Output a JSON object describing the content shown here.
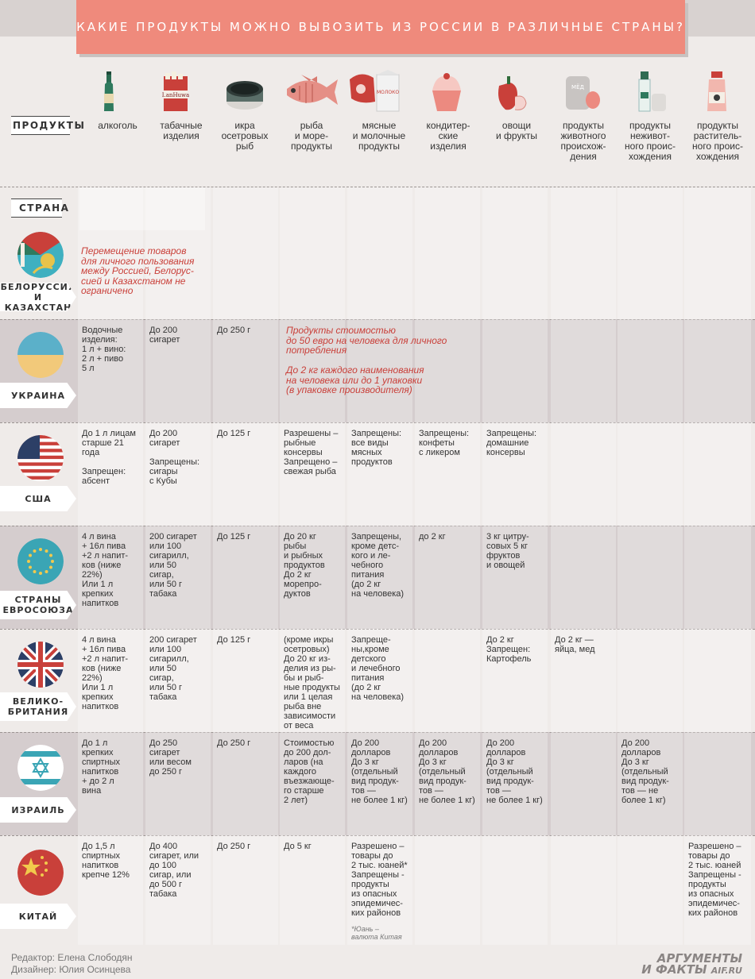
{
  "title": "КАКИЕ ПРОДУКТЫ МОЖНО ВЫВОЗИТЬ ИЗ РОССИИ В РАЗЛИЧНЫЕ СТРАНЫ?",
  "products_label": "ПРОДУКТЫ",
  "country_label": "СТРАНА",
  "products": [
    {
      "name": "алкоголь",
      "icon": "bottle-icon"
    },
    {
      "name": "табачные\nизделия",
      "icon": "cigarettes-icon"
    },
    {
      "name": "икра\nосетровых\nрыб",
      "icon": "caviar-tin-icon"
    },
    {
      "name": "рыба\nи море-\nпродукты",
      "icon": "fish-icon"
    },
    {
      "name": "мясные\nи молочные\nпродукты",
      "icon": "meat-milk-icon",
      "pack_text": "МОЛОКО"
    },
    {
      "name": "кондитер-\nские\nизделия",
      "icon": "cupcake-icon"
    },
    {
      "name": "овощи\nи фрукты",
      "icon": "pepper-icon"
    },
    {
      "name": "продукты\nживотного\nпроисхож-\nдения",
      "icon": "honey-egg-icon",
      "jar_text": "МЁД"
    },
    {
      "name": "продукты\nнеживот-\nного проис-\nхождения",
      "icon": "water-salt-icon"
    },
    {
      "name": "продукты\nраститель-\nного проис-\nхождения",
      "icon": "oil-bottle-icon"
    }
  ],
  "countries": [
    {
      "name": "БЕЛОРУССИЯ\nИ КАЗАХСТАН",
      "flag": "belarus-kazakhstan-flag",
      "note": "Перемещение товаров\nдля личного пользования\nмежду Россией, Белорус-\nсией и Казахстаном не\nограничено"
    },
    {
      "name": "УКРАИНА",
      "flag": "ukraine-flag",
      "cells": [
        "Водочные\nизделия:\n1 л + вино:\n2 л + пиво\n5 л",
        "До 200\nсигарет",
        "До 250 г"
      ],
      "note": "Продукты стоимостью\nдо 50 евро на человека для личного\nпотребления\n\nДо 2 кг каждого наименования\nна человека или до 1 упаковки\n(в упаковке производителя)"
    },
    {
      "name": "США",
      "flag": "usa-flag",
      "cells": [
        "До 1 л лицам\nстарше 21\nгода\n\nЗапрещен:\nабсент",
        "До 200\nсигарет\n\nЗапрещены:\nсигары\nс Кубы",
        "До 125 г",
        "Разрешены –\nрыбные\nконсервы\nЗапрещено –\nсвежая рыба",
        "Запрещены:\nвсе виды\nмясных\nпродуктов",
        "Запрещены:\nконфеты\nс ликером",
        "Запрещены:\nдомашние\nконсервы",
        "",
        "",
        ""
      ]
    },
    {
      "name": "СТРАНЫ\nЕВРОСОЮЗА",
      "flag": "eu-flag",
      "cells": [
        "4 л вина\n+ 16л пива\n+2 л напит-\nков (ниже\n22%)\nИли 1 л\nкрепких\nнапитков",
        "200 сигарет\nили 100\nсигарилл,\nили 50\nсигар,\nили 50 г\nтабака",
        "До 125 г",
        "До 20 кг\nрыбы\nи рыбных\nпродуктов\nДо 2 кг\nморепро-\nдуктов",
        "Запрещены,\nкроме детс-\nкого и ле-\nчебного\nпитания\n(до 2 кг\nна человека)",
        "до 2 кг",
        "3 кг цитру-\nсовых 5 кг\nфруктов\nи овощей",
        "",
        "",
        ""
      ]
    },
    {
      "name": "ВЕЛИКО-\nБРИТАНИЯ",
      "flag": "uk-flag",
      "cells": [
        "4 л вина\n+ 16л пива\n+2 л напит-\nков (ниже\n22%)\nИли 1 л\nкрепких\nнапитков",
        "200 сигарет\nили 100\nсигарилл,\nили 50\nсигар,\nили 50 г\nтабака",
        "До 125 г",
        "(кроме икры\nосетровых)\nДо 20 кг из-\nделия из ры-\nбы и рыб-\nные продукты\nили 1 целая\nрыба вне\nзависимости\nот веса",
        "Запреще-\nны,кроме\nдетского\nи лечебного\nпитания\n(до 2 кг\nна человека)",
        "",
        "До 2 кг\nЗапрещен:\nКартофель",
        "До 2 кг —\nяйца, мед",
        "",
        ""
      ]
    },
    {
      "name": "ИЗРАИЛЬ",
      "flag": "israel-flag",
      "cells": [
        "До 1 л\nкрепких\nспиртных\nнапитков\n+ до 2 л\nвина",
        "До 250\nсигарет\nили весом\nдо 250 г",
        "До 250 г",
        "Стоимостью\nдо 200 дол-\nларов (на\nкаждого\nвъезжающе-\nго старше\n2 лет)",
        "До 200\nдолларов\nДо 3 кг\n(отдельный\nвид продук-\nтов —\nне более 1 кг)",
        "До 200\nдолларов\nДо 3 кг\n(отдельный\nвид продук-\nтов —\nне более 1 кг)",
        "До 200\nдолларов\nДо 3 кг\n(отдельный\nвид продук-\nтов —\nне более 1 кг)",
        "",
        "До 200\nдолларов\nДо 3 кг\n(отдельный\nвид продук-\nтов — не\nболее 1 кг)",
        ""
      ]
    },
    {
      "name": "КИТАЙ",
      "flag": "china-flag",
      "cells": [
        "До 1,5 л\nспиртных\nнапитков\nкрепче 12%",
        "До 400\nсигарет, или\nдо 100\nсигар, или\nдо 500 г\nтабака",
        "До 250 г",
        "До 5 кг",
        "Разрешено –\nтовары до\n2 тыс. юаней*\nЗапрещены -\nпродукты\nиз опасных\nэпидемичес-\nких районов",
        "",
        "",
        "",
        "",
        "Разрешено –\nтовары до\n2 тыс. юаней\nЗапрещены -\nпродукты\nиз опасных\nэпидемичес-\nких районов"
      ],
      "footnote": "*Юань –\nвалюта Китая"
    }
  ],
  "credits": {
    "editor": "Редактор:  Елена Слободян",
    "designer": "Дизайнер: Юлия Осинцева"
  },
  "logo": {
    "line1": "АРГУМЕНТЫ",
    "line2": "И ФАКТЫ",
    "site": "AIF.RU"
  },
  "colors": {
    "banner": "#ef8a7c",
    "note": "#c9403a",
    "column": "#e1dadb",
    "column_dark": "#d2c9ca"
  }
}
